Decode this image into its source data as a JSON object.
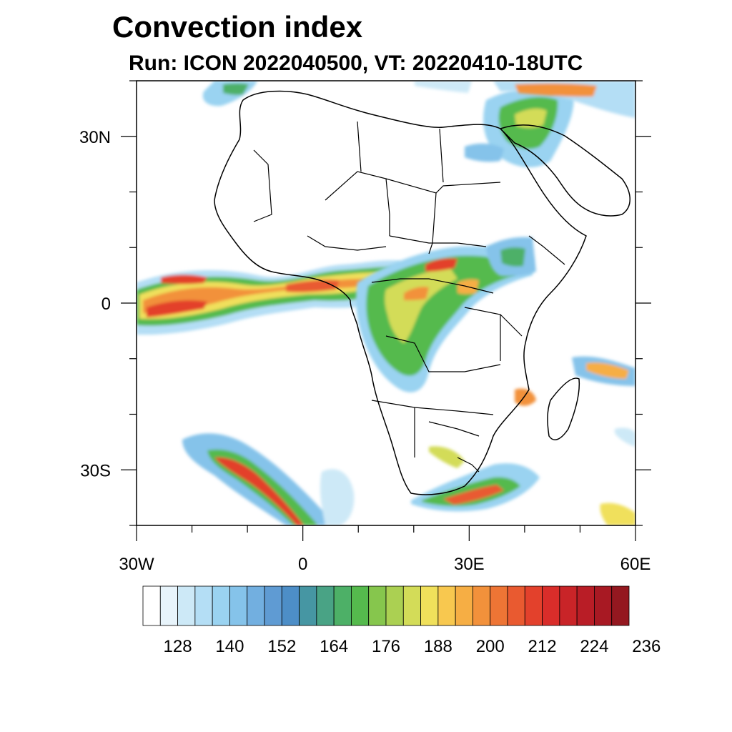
{
  "title": "Convection index",
  "subtitle": "Run: ICON 2022040500,  VT: 20220410-18UTC",
  "map": {
    "lon_range": [
      -30,
      60
    ],
    "lat_range": [
      -40,
      40
    ],
    "lon_ticks": [
      {
        "value": -30,
        "label": "30W"
      },
      {
        "value": 0,
        "label": "0"
      },
      {
        "value": 30,
        "label": "30E"
      },
      {
        "value": 60,
        "label": "60E"
      }
    ],
    "lat_ticks": [
      {
        "value": 30,
        "label": "30N"
      },
      {
        "value": 0,
        "label": "0"
      },
      {
        "value": -30,
        "label": "30S"
      }
    ],
    "field": "Convection index",
    "colors": {
      "land_outline": "#000000",
      "ocean": "#ffffff"
    }
  },
  "colorbar": {
    "labels": [
      "128",
      "140",
      "152",
      "164",
      "176",
      "188",
      "200",
      "212",
      "224",
      "236"
    ],
    "colors": [
      "#ffffff",
      "#e8f4fb",
      "#cde9f7",
      "#b4def5",
      "#9ad3f1",
      "#85c3ea",
      "#72afe0",
      "#5f9bd3",
      "#4d8ec7",
      "#4696a3",
      "#49a385",
      "#4db067",
      "#55ba4d",
      "#86c64d",
      "#abd052",
      "#d3dc58",
      "#f0e05b",
      "#f8c84f",
      "#f6ae44",
      "#f2913b",
      "#ee7535",
      "#e95a30",
      "#e3412c",
      "#d92d2a",
      "#c92428",
      "#b91d26",
      "#a81923",
      "#941820"
    ]
  }
}
